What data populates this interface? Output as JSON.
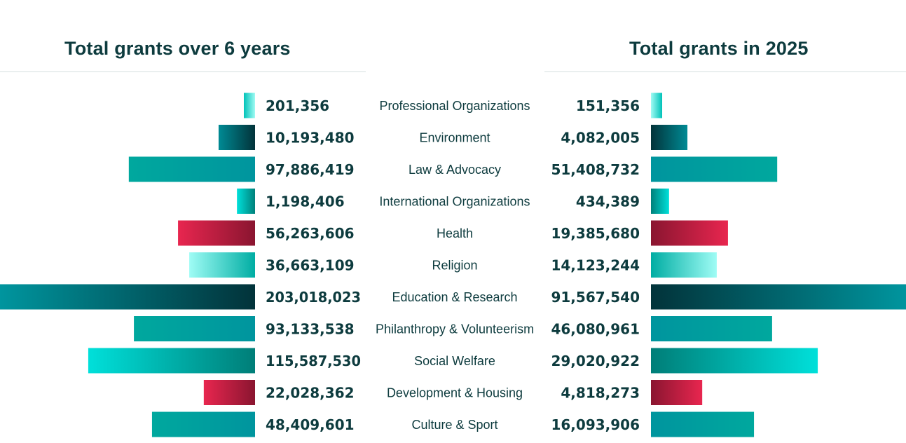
{
  "chart_data": {
    "type": "bar",
    "orientation": "horizontal-diverging",
    "left_title": "Total grants over 6 years",
    "right_title": "Total grants in 2025",
    "categories": [
      "Professional Organizations",
      "Environment",
      "Law & Advocacy",
      "International Organizations",
      "Health",
      "Religion",
      "Education & Research",
      "Philanthropy & Volunteerism",
      "Social Welfare",
      "Development & Housing",
      "Culture & Sport"
    ],
    "series": [
      {
        "name": "Total grants over 6 years",
        "side": "left",
        "values": [
          201356,
          10193480,
          97886419,
          1198406,
          56263606,
          36663109,
          203018023,
          93133538,
          115587530,
          22028362,
          48409601
        ],
        "labels": [
          "201,356",
          "10,193,480",
          "97,886,419",
          "1,198,406",
          "56,263,606",
          "36,663,109",
          "203,018,023",
          "93,133,538",
          "115,587,530",
          "22,028,362",
          "48,409,601"
        ]
      },
      {
        "name": "Total grants in 2025",
        "side": "right",
        "values": [
          151356,
          4082005,
          51408732,
          434389,
          19385680,
          14123244,
          91567540,
          46080961,
          29020922,
          4818273,
          16093906
        ],
        "labels": [
          "151,356",
          "4,082,005",
          "51,408,732",
          "434,389",
          "19,385,680",
          "14,123,244",
          "91,567,540",
          "46,080,961",
          "29,020,922",
          "4,818,273",
          "16,093,906"
        ]
      }
    ],
    "bar_length_fraction": [
      0.044,
      0.143,
      0.495,
      0.071,
      0.302,
      0.258,
      1.0,
      0.475,
      0.654,
      0.201,
      0.404
    ],
    "right_bar_length_fraction": [
      0.044,
      0.143,
      0.495,
      0.071,
      0.302,
      0.258,
      1.0,
      0.475,
      0.654,
      0.201,
      0.404
    ],
    "bar_gradients": [
      [
        "#00c2b8",
        "#a0fbf4"
      ],
      [
        "#008a94",
        "#02333a"
      ],
      [
        "#00a89e",
        "#00959e"
      ],
      [
        "#00e0da",
        "#00807a"
      ],
      [
        "#e8264f",
        "#8a1530"
      ],
      [
        "#9ffcf5",
        "#00ada3"
      ],
      [
        "#00959e",
        "#02333a"
      ],
      [
        "#00a89e",
        "#00959e"
      ],
      [
        "#00e0da",
        "#007e78"
      ],
      [
        "#e8264f",
        "#8a1530"
      ],
      [
        "#00a89e",
        "#00959e"
      ]
    ],
    "legend": "none",
    "grid": false
  }
}
